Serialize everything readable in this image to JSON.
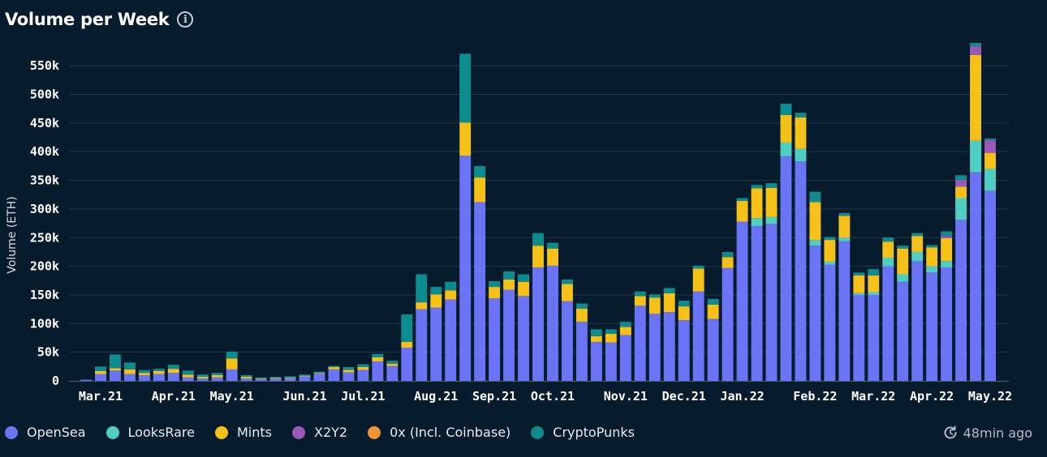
{
  "header": {
    "title": "Volume per Week",
    "info_icon": "info-icon"
  },
  "chart_data": {
    "type": "bar",
    "stacked": true,
    "ylabel": "Volume (ETH)",
    "ylim": [
      0,
      580000
    ],
    "yticks": [
      0,
      50000,
      100000,
      150000,
      200000,
      250000,
      300000,
      350000,
      400000,
      450000,
      500000,
      550000
    ],
    "ytick_labels": [
      "0",
      "50k",
      "100k",
      "150k",
      "200k",
      "250k",
      "300k",
      "350k",
      "400k",
      "450k",
      "500k",
      "550k"
    ],
    "grid": true,
    "legend_position": "bottom-left",
    "x_labels": [
      {
        "label": "Mar.21",
        "week_index": 1
      },
      {
        "label": "Apr.21",
        "week_index": 6
      },
      {
        "label": "May.21",
        "week_index": 10
      },
      {
        "label": "Jun.21",
        "week_index": 15
      },
      {
        "label": "Jul.21",
        "week_index": 19
      },
      {
        "label": "Aug.21",
        "week_index": 24
      },
      {
        "label": "Sep.21",
        "week_index": 28
      },
      {
        "label": "Oct.21",
        "week_index": 32
      },
      {
        "label": "Nov.21",
        "week_index": 37
      },
      {
        "label": "Dec.21",
        "week_index": 41
      },
      {
        "label": "Jan.22",
        "week_index": 45
      },
      {
        "label": "Feb.22",
        "week_index": 50
      },
      {
        "label": "Mar.22",
        "week_index": 54
      },
      {
        "label": "Apr.22",
        "week_index": 58
      },
      {
        "label": "May.22",
        "week_index": 62
      }
    ],
    "series": [
      {
        "name": "OpenSea",
        "color": "#6c74f6",
        "values": [
          2000,
          12000,
          18000,
          12000,
          10000,
          12000,
          14000,
          6000,
          4000,
          6000,
          20000,
          4000,
          3000,
          4000,
          5000,
          8000,
          13000,
          20000,
          15000,
          19000,
          34000,
          26000,
          58000,
          125000,
          128000,
          142000,
          393000,
          312000,
          144000,
          159000,
          148000,
          198000,
          201000,
          139000,
          103000,
          68000,
          67000,
          80000,
          131000,
          117000,
          120000,
          106000,
          156000,
          108000,
          197000,
          278000,
          270000,
          274000,
          392000,
          383000,
          236000,
          203000,
          244000,
          150000,
          150000,
          200000,
          173000,
          209000,
          189000,
          198000,
          281000,
          364000,
          332000
        ]
      },
      {
        "name": "LooksRare",
        "color": "#4fcfc3",
        "values": [
          0,
          0,
          0,
          0,
          0,
          0,
          0,
          0,
          0,
          0,
          0,
          0,
          0,
          0,
          0,
          0,
          0,
          0,
          0,
          0,
          0,
          0,
          0,
          0,
          0,
          0,
          0,
          0,
          0,
          0,
          0,
          0,
          0,
          0,
          0,
          0,
          0,
          0,
          0,
          0,
          0,
          0,
          0,
          0,
          0,
          0,
          14000,
          12000,
          24000,
          22000,
          10000,
          5000,
          6000,
          3000,
          5000,
          15000,
          13000,
          16000,
          11000,
          11000,
          38000,
          55000,
          38000
        ]
      },
      {
        "name": "Mints",
        "color": "#f5c118",
        "values": [
          0,
          5000,
          4000,
          8000,
          4000,
          5000,
          7000,
          5000,
          3000,
          4000,
          19000,
          3000,
          1000,
          1000,
          1000,
          1000,
          1000,
          4000,
          4000,
          5000,
          7000,
          4000,
          10000,
          12000,
          23000,
          16000,
          58000,
          43000,
          20000,
          18000,
          25000,
          38000,
          30000,
          30000,
          23000,
          10000,
          15000,
          14000,
          17000,
          28000,
          33000,
          24000,
          40000,
          25000,
          19000,
          36000,
          52000,
          51000,
          48000,
          55000,
          66000,
          38000,
          38000,
          31000,
          29000,
          28000,
          45000,
          28000,
          33000,
          40000,
          20000,
          150000,
          28000
        ]
      },
      {
        "name": "X2Y2",
        "color": "#9b59b6",
        "values": [
          0,
          0,
          0,
          0,
          0,
          0,
          0,
          0,
          0,
          0,
          0,
          0,
          0,
          0,
          0,
          0,
          0,
          0,
          0,
          0,
          0,
          0,
          0,
          0,
          0,
          0,
          0,
          0,
          0,
          0,
          0,
          0,
          0,
          0,
          0,
          0,
          0,
          0,
          0,
          0,
          0,
          0,
          0,
          0,
          0,
          0,
          0,
          0,
          0,
          0,
          0,
          0,
          0,
          0,
          0,
          0,
          0,
          0,
          0,
          4000,
          12000,
          15000,
          22000
        ]
      },
      {
        "name": "0x (Incl. Coinbase)",
        "color": "#f19138",
        "values": [
          0,
          0,
          0,
          0,
          0,
          0,
          0,
          0,
          0,
          0,
          0,
          0,
          0,
          0,
          0,
          0,
          0,
          0,
          0,
          0,
          0,
          0,
          0,
          0,
          0,
          0,
          0,
          0,
          0,
          0,
          0,
          0,
          0,
          0,
          0,
          0,
          0,
          0,
          0,
          0,
          0,
          0,
          0,
          0,
          0,
          0,
          0,
          0,
          0,
          0,
          0,
          0,
          0,
          0,
          0,
          0,
          0,
          0,
          0,
          0,
          0,
          0,
          0
        ]
      },
      {
        "name": "CryptoPunks",
        "color": "#0c8c8e",
        "values": [
          0,
          8000,
          24000,
          12000,
          5000,
          4000,
          7000,
          7000,
          4000,
          4000,
          12000,
          3000,
          2000,
          2000,
          2000,
          2000,
          2000,
          2000,
          5000,
          5000,
          6000,
          5000,
          48000,
          49000,
          13000,
          15000,
          120000,
          20000,
          10000,
          14000,
          13000,
          22000,
          10000,
          8000,
          9000,
          12000,
          8000,
          9000,
          8000,
          6000,
          9000,
          10000,
          5000,
          10000,
          9000,
          5000,
          6000,
          8000,
          20000,
          8000,
          18000,
          5000,
          5000,
          5000,
          11000,
          7000,
          5000,
          5000,
          4000,
          8000,
          8000,
          6000,
          3000
        ]
      }
    ]
  },
  "legend": [
    {
      "label": "OpenSea",
      "color": "#6c74f6"
    },
    {
      "label": "LooksRare",
      "color": "#4fcfc3"
    },
    {
      "label": "Mints",
      "color": "#f5c118"
    },
    {
      "label": "X2Y2",
      "color": "#9b59b6"
    },
    {
      "label": "0x (Incl. Coinbase)",
      "color": "#f19138"
    },
    {
      "label": "CryptoPunks",
      "color": "#0c8c8e"
    }
  ],
  "footer": {
    "updated": "48min ago",
    "refresh_icon": "refresh-icon"
  }
}
